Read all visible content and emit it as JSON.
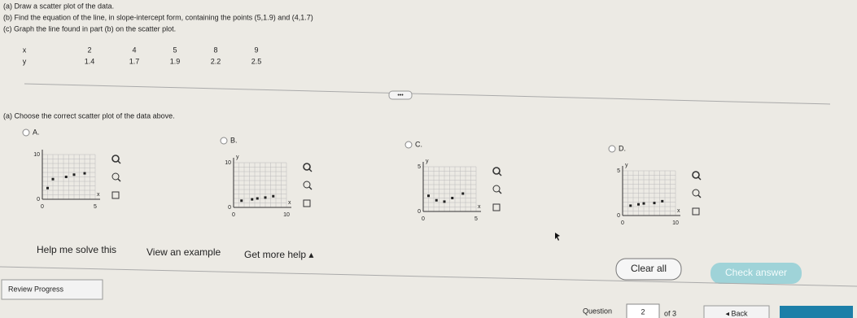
{
  "instructions": [
    "(a) Draw a scatter plot of the data.",
    "(b) Find the equation of the line, in slope-intercept form, containing the points (5,1.9) and (4,1.7)",
    "(c) Graph the line found in part (b) on the scatter plot."
  ],
  "table": {
    "rows": [
      [
        "x",
        "2",
        "4",
        "5",
        "8",
        "9"
      ],
      [
        "y",
        "1.4",
        "1.7",
        "1.9",
        "2.2",
        "2.5"
      ]
    ]
  },
  "question": "(a) Choose the correct scatter plot of the data above.",
  "options": [
    {
      "label": "A.",
      "y_top": "10",
      "x_axis": "x",
      "origin": "0",
      "x_zero": "0",
      "x_end": "5"
    },
    {
      "label": "B.",
      "y_top": "10",
      "y_axis": "y",
      "x_axis": "x",
      "origin": "0",
      "x_zero": "0",
      "x_end": "10"
    },
    {
      "label": "C.",
      "y_top": "5",
      "y_axis": "y",
      "x_axis": "x",
      "origin": "0",
      "x_zero": "0",
      "x_end": "5"
    },
    {
      "label": "D.",
      "y_top": "5",
      "y_axis": "y",
      "x_axis": "x",
      "origin": "0",
      "x_zero": "0",
      "x_end": "10"
    }
  ],
  "footer": {
    "help": "Help me solve this",
    "example": "View an example",
    "more_help": "Get more help ▴",
    "clear": "Clear all",
    "check": "Check answer",
    "review": "Review Progress",
    "question": "Question",
    "number": "2",
    "of": "of 3",
    "back": "◂ Back"
  }
}
